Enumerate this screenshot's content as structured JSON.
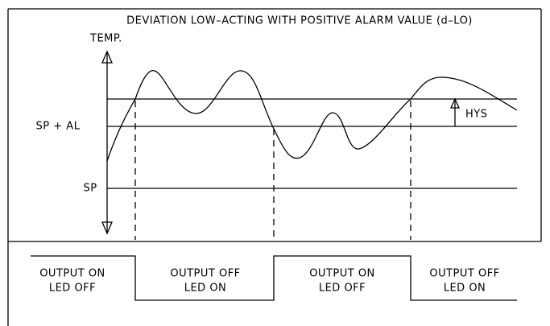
{
  "title": "DEVIATION LOW–ACTING WITH POSITIVE ALARM VALUE (d–LO)",
  "axis_label": "TEMP.",
  "levels": {
    "upper": "SP + AL",
    "lower": "SP",
    "hysteresis": "HYS"
  },
  "states": [
    {
      "output": "OUTPUT ON",
      "led": "LED OFF"
    },
    {
      "output": "OUTPUT OFF",
      "led": "LED ON"
    },
    {
      "output": "OUTPUT ON",
      "led": "LED OFF"
    },
    {
      "output": "OUTPUT OFF",
      "led": "LED ON"
    }
  ]
}
